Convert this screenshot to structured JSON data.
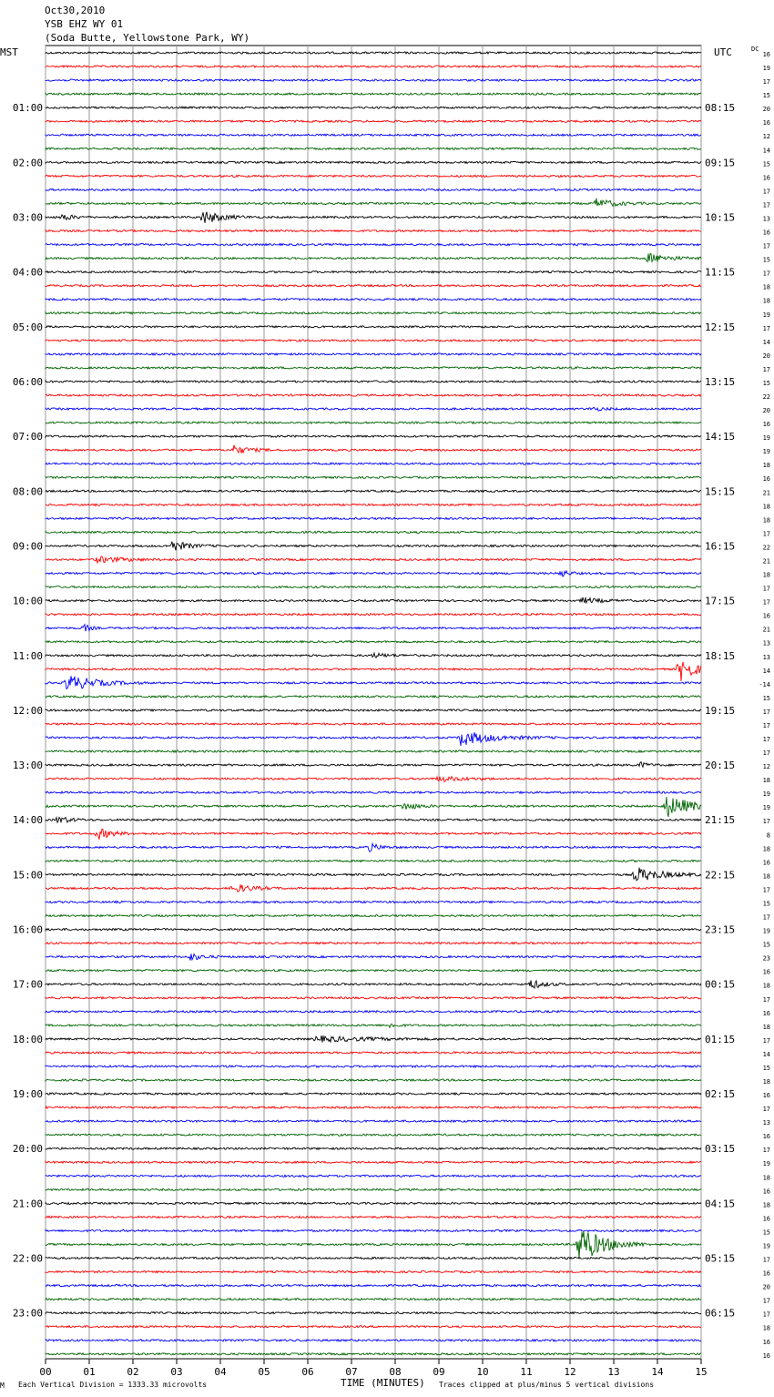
{
  "header": {
    "date": "Oct30,2010",
    "station": "YSB EHZ WY 01",
    "location": "(Soda Butte, Yellowstone Park, WY)"
  },
  "left_axis_label": "MST",
  "right_axis_label": "UTC",
  "dc_label": "DC",
  "footer": {
    "scale_note": "Each Vertical Division = 1333.33 microvolts",
    "x_title": "TIME (MINUTES)",
    "clip_note": "Traces clipped at plus/minus 5 vertical divisions",
    "corner_mark": "M"
  },
  "chart_data": {
    "type": "seismogram",
    "traces_per_hour": 4,
    "minutes_per_trace": 15,
    "xlim": [
      0,
      15
    ],
    "x_ticks": [
      "00",
      "01",
      "02",
      "03",
      "04",
      "05",
      "06",
      "07",
      "08",
      "09",
      "10",
      "11",
      "12",
      "13",
      "14",
      "15"
    ],
    "trace_colors": [
      "#000000",
      "#ff0000",
      "#0000ff",
      "#006400"
    ],
    "mst_labels": [
      "",
      "01:00",
      "02:00",
      "03:00",
      "04:00",
      "05:00",
      "06:00",
      "07:00",
      "08:00",
      "09:00",
      "10:00",
      "11:00",
      "12:00",
      "13:00",
      "14:00",
      "15:00",
      "16:00",
      "17:00",
      "18:00",
      "19:00",
      "20:00",
      "21:00",
      "22:00",
      "23:00"
    ],
    "utc_labels": [
      "",
      "08:15",
      "09:15",
      "10:15",
      "11:15",
      "12:15",
      "13:15",
      "14:15",
      "15:15",
      "16:15",
      "17:15",
      "18:15",
      "19:15",
      "20:15",
      "21:15",
      "22:15",
      "23:15",
      "00:15",
      "01:15",
      "02:15",
      "03:15",
      "04:15",
      "05:15",
      "06:15"
    ],
    "dc_offsets": [
      "16",
      "19",
      "17",
      "15",
      "20",
      "16",
      "12",
      "14",
      "15",
      "16",
      "17",
      "17",
      "13",
      "16",
      "17",
      "15",
      "17",
      "18",
      "18",
      "19",
      "17",
      "14",
      "20",
      "17",
      "15",
      "22",
      "20",
      "16",
      "19",
      "19",
      "18",
      "16",
      "21",
      "18",
      "18",
      "17",
      "22",
      "21",
      "18",
      "17",
      "17",
      "16",
      "21",
      "13",
      "13",
      "14",
      "-14",
      "15",
      "17",
      "17",
      "17",
      "17",
      "12",
      "18",
      "19",
      "19",
      "17",
      "8",
      "18",
      "16",
      "18",
      "17",
      "15",
      "17",
      "19",
      "15",
      "23",
      "16",
      "18",
      "17",
      "16",
      "18",
      "17",
      "14",
      "15",
      "18",
      "16",
      "17",
      "13",
      "16",
      "17",
      "19",
      "18",
      "16",
      "18",
      "16",
      "15",
      "19",
      "17",
      "16",
      "20",
      "17",
      "17",
      "18",
      "16",
      "16"
    ],
    "events": [
      {
        "trace": 11,
        "minute": 12.6,
        "amp": 5,
        "dur": 1.3
      },
      {
        "trace": 12,
        "minute": 0.4,
        "amp": 4,
        "dur": 0.6
      },
      {
        "trace": 12,
        "minute": 3.6,
        "amp": 7,
        "dur": 1.3
      },
      {
        "trace": 15,
        "minute": 13.8,
        "amp": 5,
        "dur": 1.4
      },
      {
        "trace": 26,
        "minute": 12.5,
        "amp": 2,
        "dur": 0.8
      },
      {
        "trace": 29,
        "minute": 4.3,
        "amp": 5,
        "dur": 1.0
      },
      {
        "trace": 36,
        "minute": 2.9,
        "amp": 6,
        "dur": 1.0
      },
      {
        "trace": 37,
        "minute": 1.2,
        "amp": 3,
        "dur": 2.0
      },
      {
        "trace": 38,
        "minute": 11.8,
        "amp": 4,
        "dur": 0.5
      },
      {
        "trace": 40,
        "minute": 12.3,
        "amp": 3,
        "dur": 1.2
      },
      {
        "trace": 42,
        "minute": 0.9,
        "amp": 4,
        "dur": 0.4
      },
      {
        "trace": 44,
        "minute": 7.5,
        "amp": 2,
        "dur": 1.2
      },
      {
        "trace": 45,
        "minute": 14.5,
        "amp": 14,
        "dur": 1.1
      },
      {
        "trace": 46,
        "minute": 0.5,
        "amp": 9,
        "dur": 1.8
      },
      {
        "trace": 50,
        "minute": 9.5,
        "amp": 8,
        "dur": 2.2
      },
      {
        "trace": 52,
        "minute": 13.6,
        "amp": 3,
        "dur": 0.6
      },
      {
        "trace": 53,
        "minute": 9.0,
        "amp": 3,
        "dur": 1.5
      },
      {
        "trace": 55,
        "minute": 14.2,
        "amp": 12,
        "dur": 1.8
      },
      {
        "trace": 55,
        "minute": 8.2,
        "amp": 4,
        "dur": 1.0
      },
      {
        "trace": 56,
        "minute": 0.3,
        "amp": 4,
        "dur": 0.8
      },
      {
        "trace": 57,
        "minute": 1.2,
        "amp": 6,
        "dur": 1.0
      },
      {
        "trace": 58,
        "minute": 7.4,
        "amp": 4,
        "dur": 0.8
      },
      {
        "trace": 60,
        "minute": 13.5,
        "amp": 8,
        "dur": 1.8
      },
      {
        "trace": 61,
        "minute": 4.3,
        "amp": 5,
        "dur": 1.2
      },
      {
        "trace": 66,
        "minute": 3.3,
        "amp": 4,
        "dur": 0.8
      },
      {
        "trace": 68,
        "minute": 11.1,
        "amp": 5,
        "dur": 0.9
      },
      {
        "trace": 71,
        "minute": 7.9,
        "amp": 3,
        "dur": 0.4
      },
      {
        "trace": 72,
        "minute": 6.2,
        "amp": 3,
        "dur": 3.5
      },
      {
        "trace": 87,
        "minute": 12.2,
        "amp": 22,
        "dur": 1.6
      }
    ]
  }
}
